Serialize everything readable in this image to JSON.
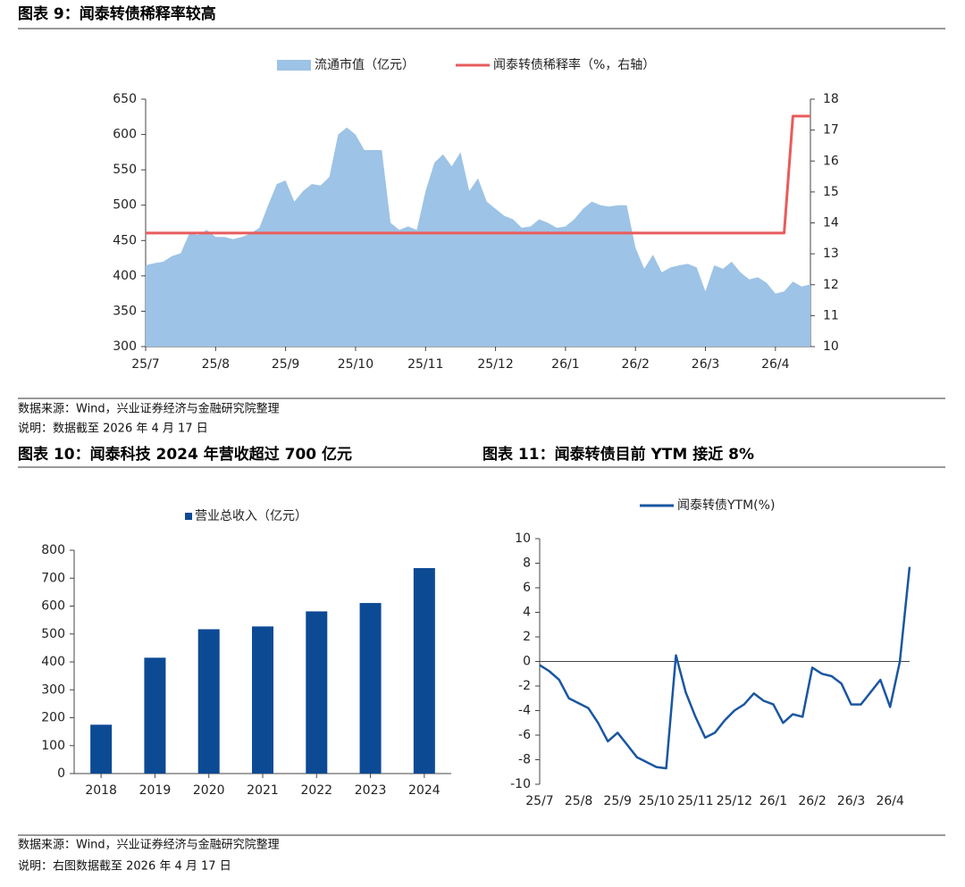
{
  "headers": [
    "图表 9：闻泰转债稀释率较高",
    "图表 10：闻泰科技 2024 年营收超过 700 亿元",
    "图表 11：闻泰转债目前 YTM 接近 8%"
  ],
  "notes": [
    "数据来源：Wind，兴业证券经济与金融研究院整理",
    "说明：数据截至 2026 年 4 月 17 日",
    "数据来源：Wind，兴业证券经济与金融研究院整理",
    "说明：右图数据截至 2026 年 4 月 17 日"
  ],
  "chart_data": [
    {
      "type": "combo",
      "categories": [
        "25/7",
        null,
        null,
        null,
        null,
        null,
        null,
        null,
        "25/8",
        null,
        null,
        null,
        null,
        null,
        null,
        null,
        "25/9",
        null,
        null,
        null,
        null,
        null,
        null,
        null,
        "25/10",
        null,
        null,
        null,
        null,
        null,
        null,
        null,
        "25/11",
        null,
        null,
        null,
        null,
        null,
        null,
        null,
        "25/12",
        null,
        null,
        null,
        null,
        null,
        null,
        null,
        "26/1",
        null,
        null,
        null,
        null,
        null,
        null,
        null,
        "26/2",
        null,
        null,
        null,
        null,
        null,
        null,
        null,
        "26/3",
        null,
        null,
        null,
        null,
        null,
        null,
        null,
        "26/4",
        null,
        null,
        null,
        null
      ],
      "series": [
        {
          "name": "流通市值（亿元）",
          "type": "area",
          "color": "#9dc3e6",
          "values": [
            415,
            418,
            420,
            428,
            432,
            460,
            458,
            465,
            455,
            455,
            452,
            455,
            460,
            468,
            500,
            530,
            535,
            505,
            520,
            530,
            528,
            540,
            600,
            610,
            600,
            578,
            578,
            578,
            475,
            465,
            470,
            465,
            520,
            560,
            572,
            555,
            575,
            520,
            538,
            505,
            495,
            485,
            480,
            468,
            470,
            480,
            475,
            468,
            470,
            480,
            495,
            505,
            500,
            498,
            500,
            500,
            440,
            410,
            430,
            405,
            412,
            415,
            417,
            412,
            378,
            415,
            410,
            420,
            405,
            395,
            398,
            390,
            375,
            378,
            392,
            385,
            388
          ]
        },
        {
          "name": "闻泰转债稀释率（%，右轴）",
          "type": "line",
          "axis": "y2",
          "color": "#e85c5c",
          "values": [
            13.67,
            13.67,
            13.67,
            13.67,
            13.67,
            13.67,
            13.67,
            13.67,
            13.67,
            13.67,
            13.67,
            13.67,
            13.67,
            13.67,
            13.67,
            13.67,
            13.67,
            13.67,
            13.67,
            13.67,
            13.67,
            13.67,
            13.67,
            13.67,
            13.67,
            13.67,
            13.67,
            13.67,
            13.67,
            13.67,
            13.67,
            13.67,
            13.67,
            13.67,
            13.67,
            13.67,
            13.67,
            13.67,
            13.67,
            13.67,
            13.67,
            13.67,
            13.67,
            13.67,
            13.67,
            13.67,
            13.67,
            13.67,
            13.67,
            13.67,
            13.67,
            13.67,
            13.67,
            13.67,
            13.67,
            13.67,
            13.67,
            13.67,
            13.67,
            13.67,
            13.67,
            13.67,
            13.67,
            13.67,
            13.67,
            13.67,
            13.67,
            13.67,
            13.67,
            13.67,
            13.67,
            13.67,
            13.67,
            13.67,
            17.45,
            17.45,
            17.45
          ]
        }
      ],
      "ylim": [
        300,
        650
      ],
      "yticks": [
        300,
        350,
        400,
        450,
        500,
        550,
        600,
        650
      ],
      "y2lim": [
        10,
        18
      ],
      "y2ticks": [
        10,
        11,
        12,
        13,
        14,
        15,
        16,
        17,
        18
      ]
    },
    {
      "type": "bar",
      "categories": [
        "2018",
        "2019",
        "2020",
        "2021",
        "2022",
        "2023",
        "2024"
      ],
      "series": [
        {
          "name": "营业总收入（亿元）",
          "color": "#0d4a94",
          "values": [
            175,
            415,
            517,
            527,
            581,
            611,
            736
          ]
        }
      ],
      "ylim": [
        0,
        800
      ],
      "yticks": [
        0,
        100,
        200,
        300,
        400,
        500,
        600,
        700,
        800
      ]
    },
    {
      "type": "line",
      "categories": [
        "25/7",
        null,
        null,
        null,
        "25/8",
        null,
        null,
        null,
        "25/9",
        null,
        null,
        null,
        "25/10",
        null,
        null,
        null,
        "25/11",
        null,
        null,
        null,
        "25/12",
        null,
        null,
        null,
        "26/1",
        null,
        null,
        null,
        "26/2",
        null,
        null,
        null,
        "26/3",
        null,
        null,
        null,
        "26/4",
        null,
        null
      ],
      "series": [
        {
          "name": "闻泰转债YTM(%)",
          "color": "#1a56a0",
          "values": [
            -0.3,
            -0.8,
            -1.5,
            -3.0,
            -3.4,
            -3.8,
            -5.0,
            -6.5,
            -5.8,
            -6.8,
            -7.8,
            -8.2,
            -8.6,
            -8.7,
            0.5,
            -2.5,
            -4.5,
            -6.2,
            -5.8,
            -4.8,
            -4.0,
            -3.5,
            -2.6,
            -3.2,
            -3.5,
            -5.0,
            -4.3,
            -4.5,
            -0.5,
            -1.0,
            -1.2,
            -1.8,
            -3.5,
            -3.5,
            -2.5,
            -1.5,
            -3.7,
            0,
            7.7
          ]
        }
      ],
      "ylim": [
        -10,
        10
      ],
      "yticks": [
        -10,
        -8,
        -6,
        -4,
        -2,
        0,
        2,
        4,
        6,
        8,
        10
      ]
    }
  ]
}
